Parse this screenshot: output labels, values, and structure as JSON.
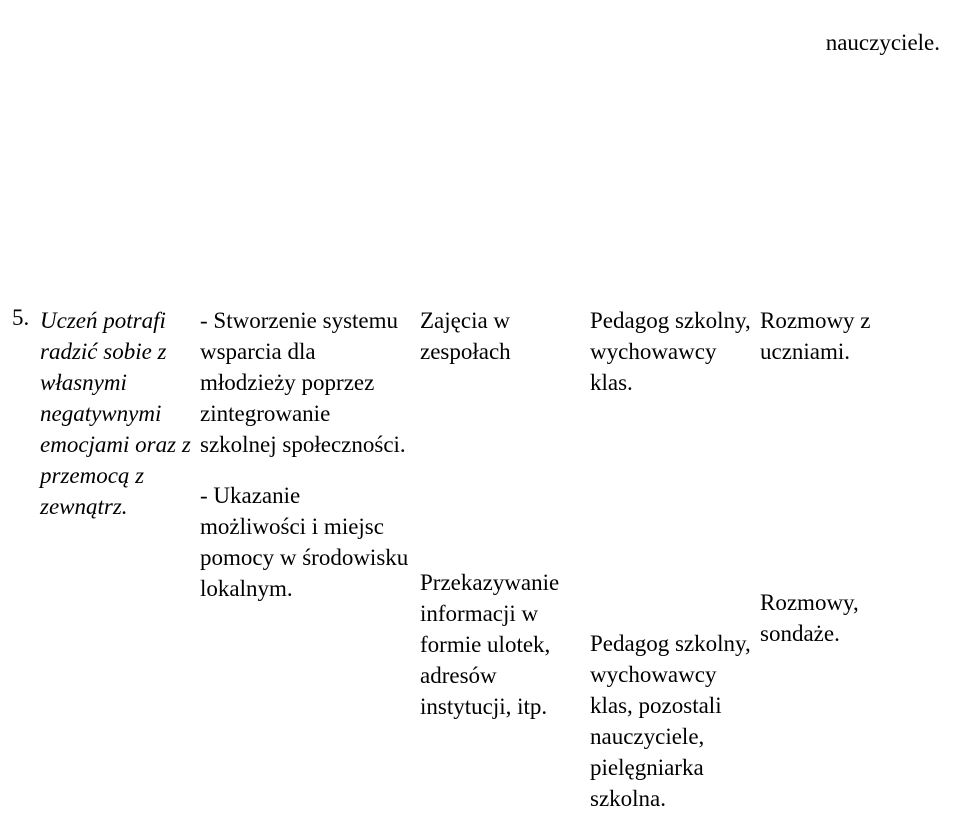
{
  "top_right": "nauczyciele.",
  "row_number": "5.",
  "col1": {
    "p1": "Uczeń potrafi radzić sobie z własnymi negatywnymi emocjami oraz z przemocą z zewnątrz."
  },
  "col2": {
    "p1": "- Stworzenie systemu wsparcia dla młodzieży poprzez zintegrowanie szkolnej społeczności.",
    "p2": "- Ukazanie możliwości i miejsc pomocy w środowisku lokalnym."
  },
  "col3": {
    "p1": "Zajęcia w zespołach",
    "p2": "Przekazywanie informacji w formie ulotek, adresów instytucji, itp."
  },
  "col4": {
    "p1": "Pedagog szkolny, wychowawcy klas.",
    "p2": "Pedagog szkolny, wychowawcy klas, pozostali nauczyciele, pielęgniarka szkolna."
  },
  "col5": {
    "p1": "Rozmowy z uczniami.",
    "p2": "Rozmowy, sondaże."
  }
}
